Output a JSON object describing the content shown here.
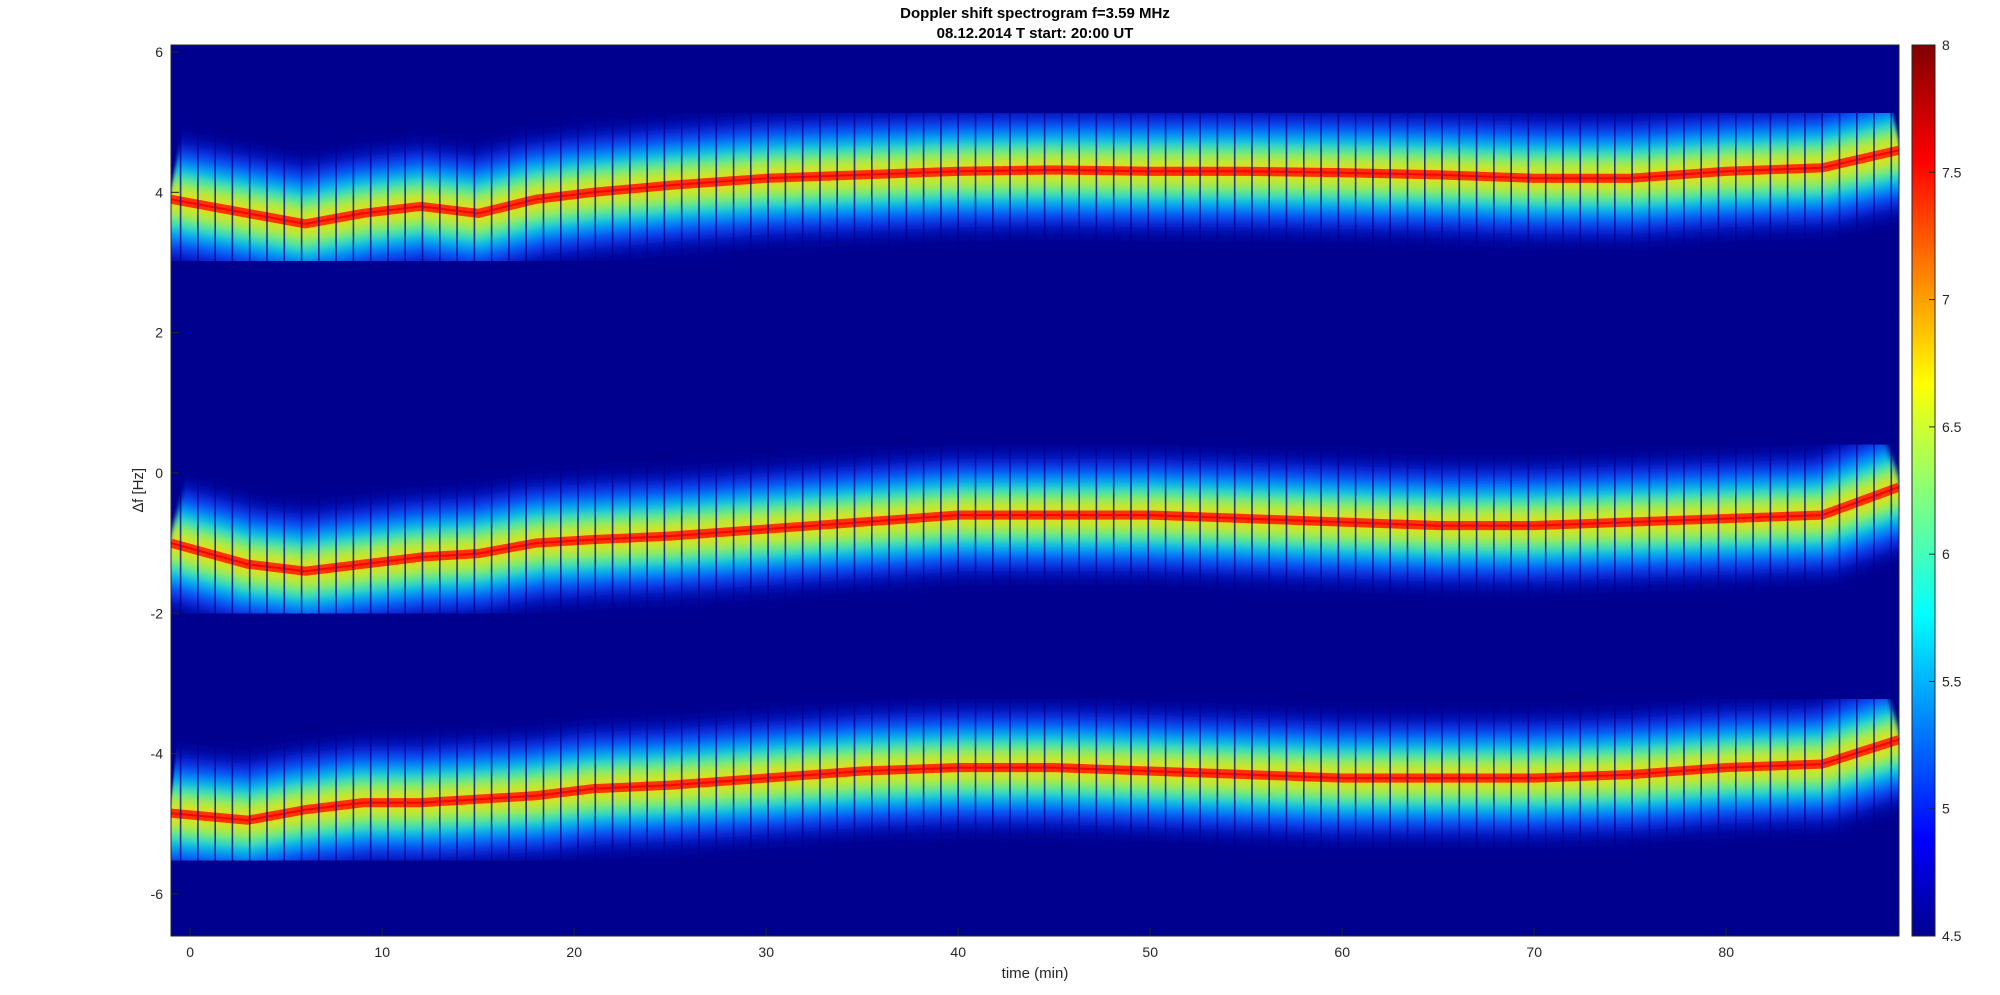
{
  "chart_data": {
    "type": "heatmap",
    "title": "Doppler shift spectrogram f=3.59 MHz",
    "subtitle": "08.12.2014   T start: 20:00 UT",
    "xlabel": "time (min)",
    "ylabel": "∆f [Hz]",
    "xlim": [
      -1,
      89
    ],
    "ylim": [
      -6.6,
      6.1
    ],
    "x_ticks": [
      0,
      10,
      20,
      30,
      40,
      50,
      60,
      70,
      80
    ],
    "y_ticks": [
      6,
      4,
      2,
      0,
      -2,
      -4,
      -6
    ],
    "colorbar": {
      "range": [
        4.5,
        8
      ],
      "ticks": [
        8,
        7.5,
        7,
        6.5,
        6,
        5.5,
        5,
        4.5
      ],
      "colormap": "jet",
      "background_color": "#00008f"
    },
    "traces": [
      {
        "x": [
          -1,
          3,
          6,
          9,
          12,
          15,
          18,
          21,
          25,
          30,
          35,
          40,
          45,
          50,
          55,
          60,
          65,
          70,
          75,
          80,
          85,
          89
        ],
        "y": [
          3.9,
          3.7,
          3.55,
          3.7,
          3.8,
          3.7,
          3.9,
          4.0,
          4.1,
          4.2,
          4.25,
          4.3,
          4.32,
          4.3,
          4.3,
          4.28,
          4.25,
          4.2,
          4.2,
          4.3,
          4.35,
          4.6
        ]
      },
      {
        "x": [
          -1,
          3,
          6,
          9,
          12,
          15,
          18,
          21,
          25,
          30,
          35,
          40,
          45,
          50,
          55,
          60,
          65,
          70,
          75,
          80,
          85,
          89
        ],
        "y": [
          -1.0,
          -1.3,
          -1.4,
          -1.3,
          -1.2,
          -1.15,
          -1.0,
          -0.95,
          -0.9,
          -0.8,
          -0.7,
          -0.6,
          -0.6,
          -0.6,
          -0.65,
          -0.7,
          -0.75,
          -0.75,
          -0.7,
          -0.65,
          -0.6,
          -0.2
        ]
      },
      {
        "x": [
          -1,
          3,
          6,
          9,
          12,
          15,
          18,
          21,
          25,
          30,
          35,
          40,
          45,
          50,
          55,
          60,
          65,
          70,
          75,
          80,
          85,
          89
        ],
        "y": [
          -4.85,
          -4.95,
          -4.8,
          -4.7,
          -4.7,
          -4.65,
          -4.6,
          -4.5,
          -4.45,
          -4.35,
          -4.25,
          -4.2,
          -4.2,
          -4.25,
          -4.3,
          -4.35,
          -4.35,
          -4.35,
          -4.3,
          -4.2,
          -4.15,
          -3.8
        ]
      }
    ]
  }
}
